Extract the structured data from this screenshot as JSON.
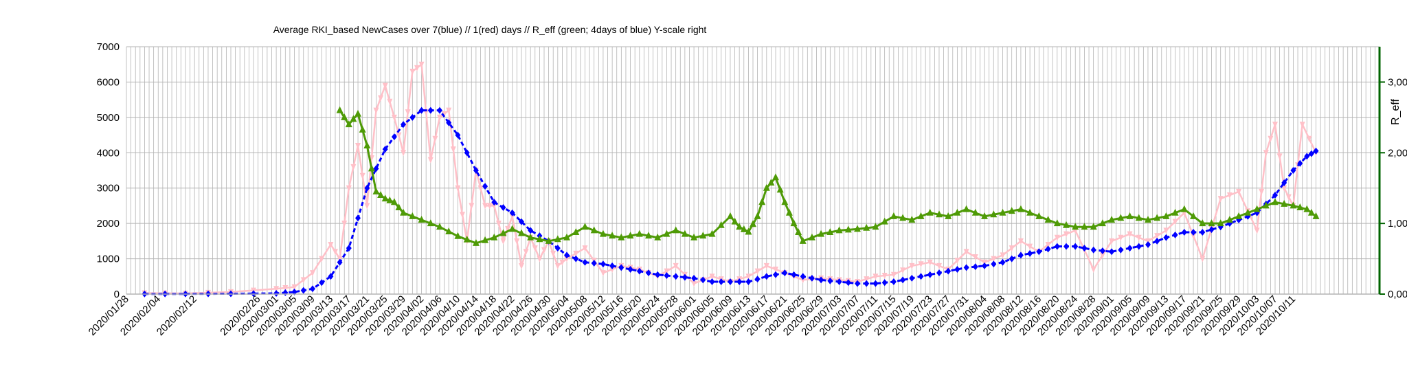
{
  "chart_data": {
    "type": "line",
    "title": "Average RKI_based NewCases over 7(blue) // 1(red) days //  R_eff (green; 4days of blue) Y-scale right",
    "xlabel": "",
    "ylabel": "",
    "y2label": "R_eff",
    "ylim": [
      0,
      7000
    ],
    "y2lim": [
      0,
      3.5
    ],
    "yticks": [
      "0",
      "1000",
      "2000",
      "3000",
      "4000",
      "5000",
      "6000",
      "7000"
    ],
    "y2ticks": [
      "0,00",
      "1,00",
      "2,00",
      "3,00"
    ],
    "grid": true,
    "colors": {
      "blue": "#0000ff",
      "red": "#ffc0c8",
      "green": "#4e9a06",
      "right_axis": "#006400",
      "grid": "#b3b3b3"
    },
    "x_range": [
      "2020/01/28",
      "2020/10/30"
    ],
    "x_ticks": [
      "2020/01/28",
      "2020/02/04",
      "2020/02/12",
      "2020/02/26",
      "2020/03/01",
      "2020/03/05",
      "2020/03/09",
      "2020/03/13",
      "2020/03/17",
      "2020/03/21",
      "2020/03/25",
      "2020/03/29",
      "2020/04/02",
      "2020/04/06",
      "2020/04/10",
      "2020/04/14",
      "2020/04/18",
      "2020/04/22",
      "2020/04/26",
      "2020/04/30",
      "2020/05/04",
      "2020/05/08",
      "2020/05/12",
      "2020/05/16",
      "2020/05/20",
      "2020/05/24",
      "2020/05/28",
      "2020/06/01",
      "2020/06/05",
      "2020/06/09",
      "2020/06/13",
      "2020/06/17",
      "2020/06/21",
      "2020/06/25",
      "2020/06/29",
      "2020/07/03",
      "2020/07/07",
      "2020/07/11",
      "2020/07/15",
      "2020/07/19",
      "2020/07/23",
      "2020/07/27",
      "2020/07/31",
      "2020/08/04",
      "2020/08/08",
      "2020/08/12",
      "2020/08/16",
      "2020/08/20",
      "2020/08/24",
      "2020/08/28",
      "2020/09/01",
      "2020/09/05",
      "2020/09/09",
      "2020/09/13",
      "2020/09/17",
      "2020/09/21",
      "2020/09/25",
      "2020/09/29",
      "2020/10/03",
      "2020/10/07",
      "2020/10/11"
    ],
    "series": [
      {
        "color": "#0000ff",
        "axis": "left",
        "marker": "diamond",
        "x": [
          "2020/02/01",
          "2020/02/10",
          "2020/02/20",
          "2020/03/01",
          "2020/03/05",
          "2020/03/09",
          "2020/03/13",
          "2020/03/17",
          "2020/03/21",
          "2020/03/25",
          "2020/03/29",
          "2020/04/02",
          "2020/04/06",
          "2020/04/10",
          "2020/04/14",
          "2020/04/18",
          "2020/04/22",
          "2020/04/26",
          "2020/04/30",
          "2020/05/04",
          "2020/05/08",
          "2020/05/12",
          "2020/05/16",
          "2020/05/20",
          "2020/05/24",
          "2020/05/28",
          "2020/06/01",
          "2020/06/05",
          "2020/06/09",
          "2020/06/13",
          "2020/06/17",
          "2020/06/21",
          "2020/06/25",
          "2020/06/29",
          "2020/07/03",
          "2020/07/07",
          "2020/07/11",
          "2020/07/15",
          "2020/07/19",
          "2020/07/23",
          "2020/07/27",
          "2020/07/31",
          "2020/08/04",
          "2020/08/08",
          "2020/08/12",
          "2020/08/16",
          "2020/08/20",
          "2020/08/24",
          "2020/08/28",
          "2020/09/01",
          "2020/09/05",
          "2020/09/09",
          "2020/09/13",
          "2020/09/17",
          "2020/09/21",
          "2020/09/25",
          "2020/09/29",
          "2020/10/03",
          "2020/10/07",
          "2020/10/11",
          "2020/10/14",
          "2020/10/16"
        ],
        "y": [
          5,
          5,
          10,
          20,
          60,
          150,
          500,
          1300,
          3000,
          4100,
          4800,
          5200,
          5200,
          4500,
          3500,
          2600,
          2300,
          1800,
          1500,
          1100,
          900,
          850,
          750,
          650,
          550,
          500,
          450,
          350,
          350,
          350,
          500,
          600,
          500,
          400,
          350,
          300,
          300,
          350,
          450,
          550,
          650,
          750,
          800,
          900,
          1100,
          1200,
          1350,
          1350,
          1250,
          1200,
          1300,
          1400,
          1600,
          1750,
          1750,
          1900,
          2100,
          2300,
          2800,
          3500,
          3900,
          4050
        ]
      },
      {
        "color": "#ffc0c8",
        "axis": "left",
        "marker": "triangle-down",
        "x": [
          "2020/02/01",
          "2020/02/10",
          "2020/02/20",
          "2020/03/01",
          "2020/03/05",
          "2020/03/09",
          "2020/03/13",
          "2020/03/15",
          "2020/03/17",
          "2020/03/19",
          "2020/03/21",
          "2020/03/23",
          "2020/03/25",
          "2020/03/27",
          "2020/03/29",
          "2020/03/31",
          "2020/04/02",
          "2020/04/04",
          "2020/04/06",
          "2020/04/08",
          "2020/04/10",
          "2020/04/12",
          "2020/04/14",
          "2020/04/16",
          "2020/04/18",
          "2020/04/20",
          "2020/04/22",
          "2020/04/24",
          "2020/04/26",
          "2020/04/28",
          "2020/04/30",
          "2020/05/02",
          "2020/05/04",
          "2020/05/08",
          "2020/05/12",
          "2020/05/16",
          "2020/05/20",
          "2020/05/24",
          "2020/05/28",
          "2020/06/01",
          "2020/06/05",
          "2020/06/09",
          "2020/06/13",
          "2020/06/17",
          "2020/06/21",
          "2020/06/25",
          "2020/06/29",
          "2020/07/03",
          "2020/07/07",
          "2020/07/11",
          "2020/07/15",
          "2020/07/19",
          "2020/07/23",
          "2020/07/27",
          "2020/07/31",
          "2020/08/04",
          "2020/08/08",
          "2020/08/12",
          "2020/08/16",
          "2020/08/20",
          "2020/08/24",
          "2020/08/28",
          "2020/09/01",
          "2020/09/05",
          "2020/09/09",
          "2020/09/13",
          "2020/09/17",
          "2020/09/21",
          "2020/09/25",
          "2020/09/29",
          "2020/10/03",
          "2020/10/05",
          "2020/10/07",
          "2020/10/09",
          "2020/10/11",
          "2020/10/13",
          "2020/10/16"
        ],
        "y": [
          30,
          20,
          60,
          150,
          200,
          600,
          1400,
          1000,
          3000,
          4200,
          2500,
          5200,
          5900,
          5000,
          4000,
          6300,
          6500,
          3800,
          5000,
          5200,
          3000,
          1500,
          3500,
          2500,
          2500,
          1500,
          2200,
          800,
          1600,
          1000,
          1500,
          800,
          1000,
          1300,
          600,
          800,
          700,
          500,
          800,
          300,
          500,
          350,
          500,
          800,
          600,
          400,
          450,
          400,
          350,
          500,
          550,
          800,
          900,
          700,
          1200,
          900,
          1100,
          1500,
          1200,
          1600,
          1800,
          700,
          1500,
          1700,
          1500,
          1800,
          2300,
          1000,
          2700,
          2900,
          1800,
          4000,
          4800,
          3000,
          2500,
          4800,
          4000
        ]
      },
      {
        "color": "#4e9a06",
        "axis": "right",
        "marker": "triangle-up",
        "x": [
          "2020/03/15",
          "2020/03/17",
          "2020/03/19",
          "2020/03/21",
          "2020/03/23",
          "2020/03/25",
          "2020/03/27",
          "2020/03/29",
          "2020/04/02",
          "2020/04/06",
          "2020/04/10",
          "2020/04/14",
          "2020/04/18",
          "2020/04/22",
          "2020/04/26",
          "2020/04/30",
          "2020/05/04",
          "2020/05/08",
          "2020/05/12",
          "2020/05/16",
          "2020/05/20",
          "2020/05/24",
          "2020/05/28",
          "2020/06/01",
          "2020/06/05",
          "2020/06/09",
          "2020/06/11",
          "2020/06/13",
          "2020/06/15",
          "2020/06/17",
          "2020/06/19",
          "2020/06/21",
          "2020/06/23",
          "2020/06/25",
          "2020/06/29",
          "2020/07/03",
          "2020/07/07",
          "2020/07/11",
          "2020/07/15",
          "2020/07/19",
          "2020/07/23",
          "2020/07/27",
          "2020/07/31",
          "2020/08/04",
          "2020/08/08",
          "2020/08/12",
          "2020/08/16",
          "2020/08/20",
          "2020/08/24",
          "2020/08/28",
          "2020/09/01",
          "2020/09/05",
          "2020/09/09",
          "2020/09/13",
          "2020/09/17",
          "2020/09/21",
          "2020/09/25",
          "2020/09/29",
          "2020/10/03",
          "2020/10/07",
          "2020/10/11",
          "2020/10/14",
          "2020/10/16"
        ],
        "y": [
          2.6,
          2.4,
          2.55,
          2.1,
          1.45,
          1.35,
          1.3,
          1.15,
          1.05,
          0.95,
          0.82,
          0.72,
          0.8,
          0.92,
          0.8,
          0.75,
          0.8,
          0.95,
          0.85,
          0.8,
          0.85,
          0.8,
          0.9,
          0.8,
          0.85,
          1.1,
          0.95,
          0.88,
          1.1,
          1.5,
          1.65,
          1.3,
          1.0,
          0.75,
          0.85,
          0.9,
          0.92,
          0.95,
          1.1,
          1.05,
          1.15,
          1.1,
          1.2,
          1.1,
          1.15,
          1.2,
          1.1,
          1.0,
          0.95,
          0.95,
          1.05,
          1.1,
          1.05,
          1.1,
          1.2,
          1.0,
          1.0,
          1.1,
          1.2,
          1.3,
          1.25,
          1.2,
          1.1
        ]
      }
    ]
  }
}
